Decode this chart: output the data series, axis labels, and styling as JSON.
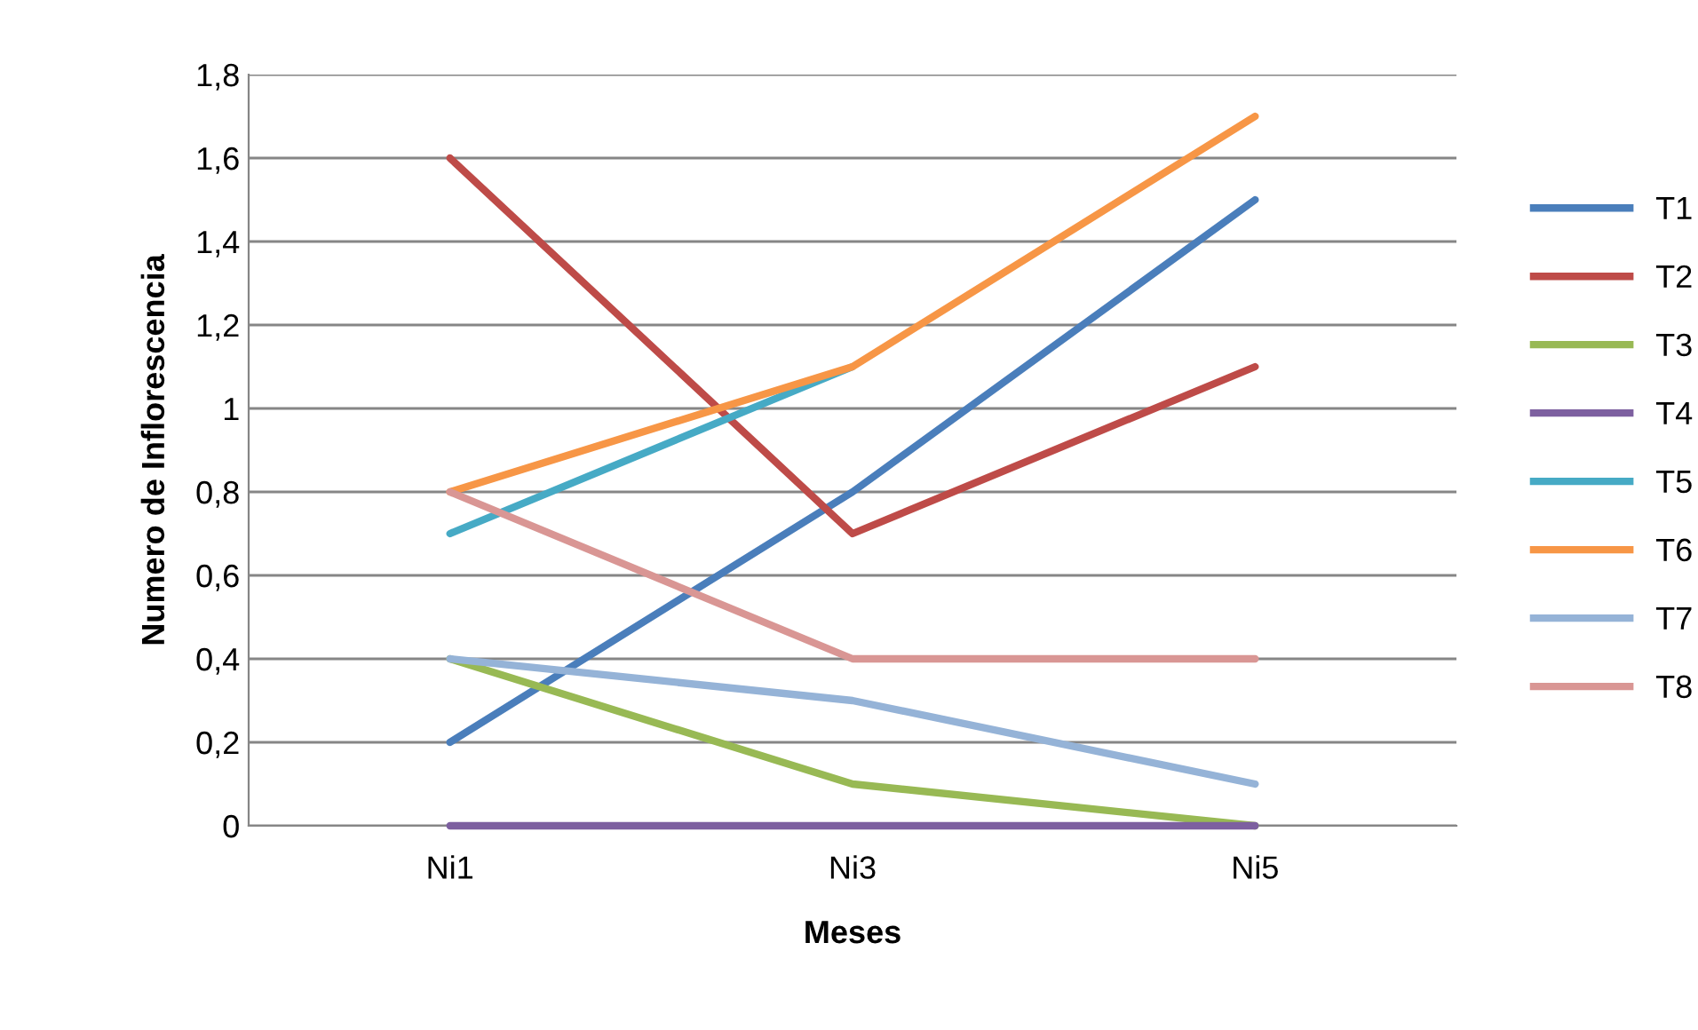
{
  "chart_data": {
    "type": "line",
    "xlabel": "Meses",
    "ylabel": "Numero de Inflorescencia",
    "categories": [
      "Ni1",
      "Ni3",
      "Ni5"
    ],
    "series": [
      {
        "name": "T1",
        "color": "#4a7ebb",
        "values": [
          0.2,
          0.8,
          1.5
        ]
      },
      {
        "name": "T2",
        "color": "#be4b48",
        "values": [
          1.6,
          0.7,
          1.1
        ]
      },
      {
        "name": "T3",
        "color": "#98b954",
        "values": [
          0.4,
          0.1,
          0
        ]
      },
      {
        "name": "T4",
        "color": "#7d60a0",
        "values": [
          0,
          0,
          0
        ]
      },
      {
        "name": "T5",
        "color": "#46aac5",
        "values": [
          0.7,
          1.1,
          null
        ]
      },
      {
        "name": "T6",
        "color": "#f79646",
        "values": [
          0.8,
          1.1,
          1.7
        ]
      },
      {
        "name": "T7",
        "color": "#95b3d7",
        "values": [
          0.4,
          0.3,
          0.1
        ]
      },
      {
        "name": "T8",
        "color": "#d99694",
        "values": [
          0.8,
          0.4,
          0.4
        ]
      }
    ],
    "ylim": [
      0,
      1.8
    ],
    "yticks": [
      0,
      {
        "value": 0.2,
        "label": "0,2"
      },
      {
        "value": 0.4,
        "label": "0,4"
      },
      {
        "value": 0.6,
        "label": "0,6"
      },
      {
        "value": 0.8,
        "label": "0,8"
      },
      1,
      {
        "value": 1.2,
        "label": "1,2"
      },
      {
        "value": 1.4,
        "label": "1,4"
      },
      {
        "value": 1.6,
        "label": "1,6"
      },
      {
        "value": 1.8,
        "label": "1,8"
      }
    ],
    "grid": "y",
    "legend": "right",
    "marker": "none",
    "line_style": "solid"
  }
}
